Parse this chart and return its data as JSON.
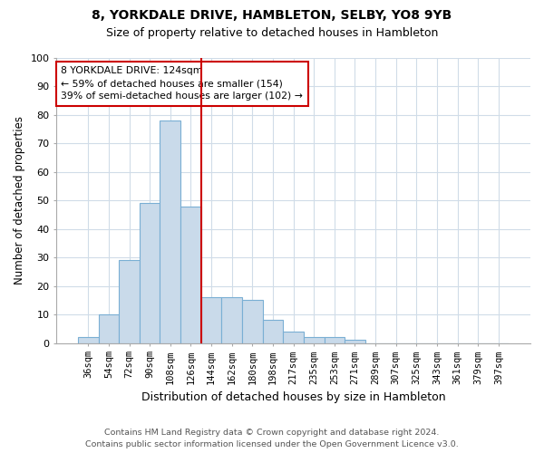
{
  "title1": "8, YORKDALE DRIVE, HAMBLETON, SELBY, YO8 9YB",
  "title2": "Size of property relative to detached houses in Hambleton",
  "xlabel": "Distribution of detached houses by size in Hambleton",
  "ylabel": "Number of detached properties",
  "bar_labels": [
    "36sqm",
    "54sqm",
    "72sqm",
    "90sqm",
    "108sqm",
    "126sqm",
    "144sqm",
    "162sqm",
    "180sqm",
    "198sqm",
    "217sqm",
    "235sqm",
    "253sqm",
    "271sqm",
    "289sqm",
    "307sqm",
    "325sqm",
    "343sqm",
    "361sqm",
    "379sqm",
    "397sqm"
  ],
  "bar_values": [
    2,
    10,
    29,
    49,
    78,
    48,
    16,
    16,
    15,
    8,
    4,
    2,
    2,
    1,
    0,
    0,
    0,
    0,
    0,
    0,
    0
  ],
  "bar_color": "#c9daea",
  "bar_edge_color": "#7aafd4",
  "vline_color": "#cc0000",
  "annotation_line1": "8 YORKDALE DRIVE: 124sqm",
  "annotation_line2": "← 59% of detached houses are smaller (154)",
  "annotation_line3": "39% of semi-detached houses are larger (102) →",
  "footnote1": "Contains HM Land Registry data © Crown copyright and database right 2024.",
  "footnote2": "Contains public sector information licensed under the Open Government Licence v3.0.",
  "ylim": [
    0,
    100
  ],
  "background_color": "#ffffff",
  "grid_color": "#d0dce8"
}
